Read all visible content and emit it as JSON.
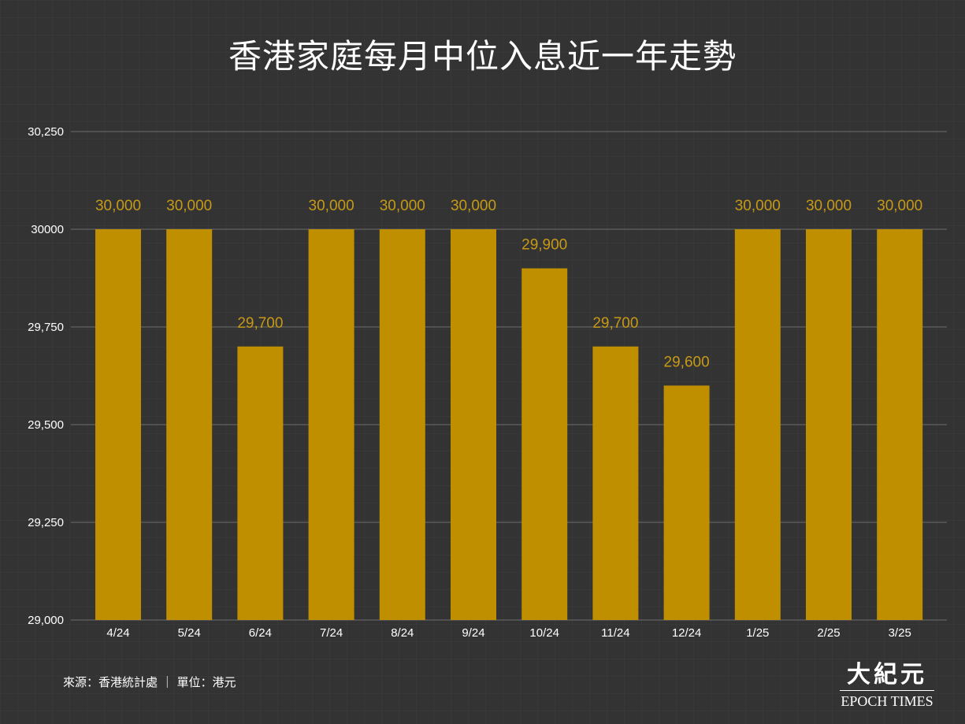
{
  "header": {
    "title": "香港家庭每月中位入息近一年走勢"
  },
  "footer": {
    "source": "來源：香港統計處 ｜ 單位：港元",
    "logo_cn": "大紀元",
    "logo_en": "EPOCH TIMES"
  },
  "chart_data": {
    "type": "bar",
    "title": "香港家庭每月中位入息近一年走勢",
    "categories": [
      "4/24",
      "5/24",
      "6/24",
      "7/24",
      "8/24",
      "9/24",
      "10/24",
      "11/24",
      "12/24",
      "1/25",
      "2/25",
      "3/25"
    ],
    "values": [
      30000,
      30000,
      29700,
      30000,
      30000,
      30000,
      29900,
      29700,
      29600,
      30000,
      30000,
      30000
    ],
    "data_labels": [
      "30,000",
      "30,000",
      "29,700",
      "30,000",
      "30,000",
      "30,000",
      "29,900",
      "29,700",
      "29,600",
      "30,000",
      "30,000",
      "30,000"
    ],
    "ylim": [
      29000,
      30250
    ],
    "yticks": [
      29000,
      29250,
      29500,
      29750,
      30000,
      30250
    ],
    "ytick_labels": [
      "29,000",
      "29,250",
      "29,500",
      "29,750",
      "30000",
      "30,250"
    ],
    "grid": true,
    "colors": {
      "bar": "#bf8f00",
      "label": "#c79a16",
      "grid": "#6e6e6e",
      "background": "#333333"
    }
  }
}
